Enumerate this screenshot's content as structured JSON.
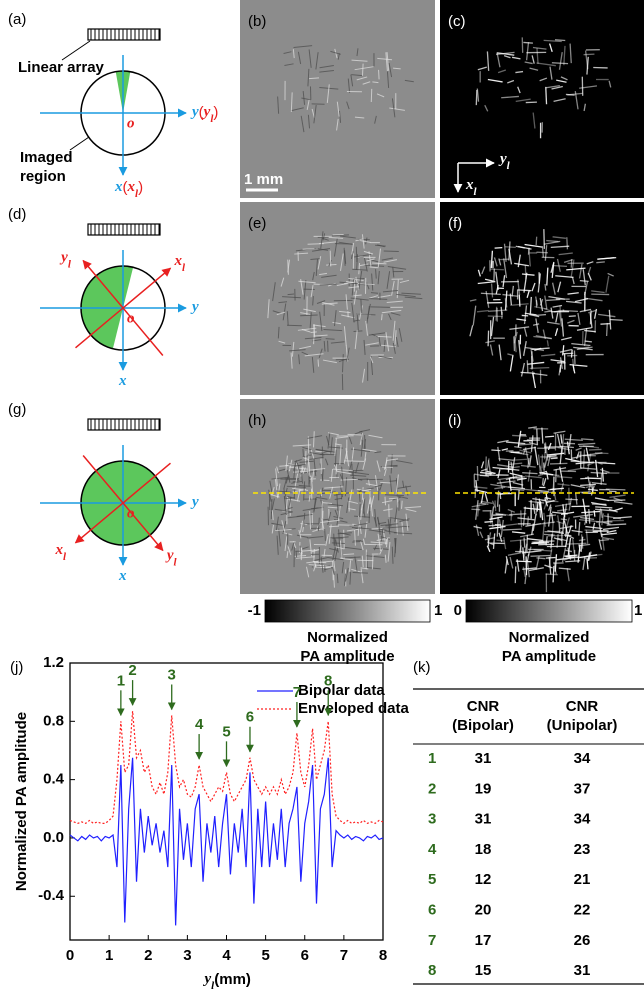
{
  "panel_labels": [
    "(a)",
    "(b)",
    "(c)",
    "(d)",
    "(e)",
    "(f)",
    "(g)",
    "(h)",
    "(i)",
    "(j)",
    "(k)"
  ],
  "diagram": {
    "array_label": "Linear array",
    "region_label": [
      "Imaged",
      "region"
    ],
    "origin": "o",
    "x": "x",
    "y": "y",
    "sub": "l",
    "open": "(",
    "close": ")"
  },
  "scale_bar": "1 mm",
  "colorbars": [
    {
      "ticks": [
        -1,
        1
      ]
    },
    {
      "ticks": [
        0,
        1
      ]
    }
  ],
  "colorbar_label": [
    "Normalized",
    "PA amplitude"
  ],
  "chart_data": {
    "type": "line",
    "y_label": "Normalized PA amplitude",
    "x_label": {
      "text": "y",
      "sub": "l",
      "unit": "(mm)"
    },
    "x": [
      0,
      0.1,
      0.2,
      0.3,
      0.4,
      0.5,
      0.6,
      0.7,
      0.8,
      0.9,
      1,
      1.1,
      1.2,
      1.3,
      1.4,
      1.5,
      1.6,
      1.7,
      1.8,
      1.9,
      2,
      2.1,
      2.2,
      2.3,
      2.4,
      2.5,
      2.6,
      2.7,
      2.8,
      2.9,
      3,
      3.1,
      3.2,
      3.3,
      3.4,
      3.5,
      3.6,
      3.7,
      3.8,
      3.9,
      4,
      4.1,
      4.2,
      4.3,
      4.4,
      4.5,
      4.6,
      4.7,
      4.8,
      4.9,
      5,
      5.1,
      5.2,
      5.3,
      5.4,
      5.5,
      5.6,
      5.7,
      5.8,
      5.9,
      6,
      6.1,
      6.2,
      6.3,
      6.4,
      6.5,
      6.6,
      6.7,
      6.8,
      6.9,
      7,
      7.1,
      7.2,
      7.3,
      7.4,
      7.5,
      7.6,
      7.7,
      7.8,
      7.9,
      8
    ],
    "series": [
      {
        "name": "Bipolar data",
        "color": "#2020ff",
        "dash": "solid",
        "values": [
          0.02,
          0,
          -0.02,
          0.01,
          -0.01,
          0.02,
          0,
          0.01,
          -0.02,
          0.01,
          0,
          0.02,
          -0.2,
          0.5,
          -0.58,
          0.2,
          0.55,
          -0.3,
          0.2,
          -0.1,
          0.15,
          -0.05,
          0.1,
          -0.1,
          0.05,
          -0.2,
          0.5,
          -0.6,
          0.2,
          -0.15,
          0.1,
          -0.2,
          0.2,
          0.3,
          -0.3,
          0.1,
          -0.1,
          0.15,
          -0.2,
          0.1,
          0.3,
          -0.25,
          0.1,
          -0.1,
          0.2,
          -0.2,
          0.45,
          -0.45,
          0.2,
          -0.2,
          0.25,
          -0.2,
          0.1,
          -0.15,
          0.2,
          -0.2,
          0.1,
          0.2,
          0.35,
          -0.3,
          0.1,
          0.25,
          0.5,
          -0.45,
          0.2,
          0.3,
          0.55,
          -0.2,
          0.05,
          0.02,
          0,
          0.02,
          -0.01,
          0.01,
          0,
          -0.02,
          0.01,
          0,
          0.02,
          -0.01,
          0
        ]
      },
      {
        "name": "Enveloped data",
        "color": "#ff2020",
        "dash": "dotted",
        "values": [
          0.12,
          0.11,
          0.1,
          0.11,
          0.1,
          0.12,
          0.1,
          0.11,
          0.1,
          0.1,
          0.12,
          0.15,
          0.4,
          0.8,
          0.45,
          0.5,
          0.87,
          0.55,
          0.6,
          0.45,
          0.5,
          0.35,
          0.3,
          0.38,
          0.3,
          0.45,
          0.84,
          0.5,
          0.35,
          0.4,
          0.3,
          0.28,
          0.35,
          0.5,
          0.35,
          0.3,
          0.25,
          0.3,
          0.35,
          0.32,
          0.45,
          0.3,
          0.25,
          0.3,
          0.35,
          0.4,
          0.55,
          0.4,
          0.35,
          0.3,
          0.35,
          0.3,
          0.35,
          0.3,
          0.4,
          0.3,
          0.35,
          0.45,
          0.72,
          0.45,
          0.35,
          0.5,
          0.75,
          0.4,
          0.5,
          0.6,
          0.8,
          0.3,
          0.15,
          0.12,
          0.1,
          0.12,
          0.1,
          0.11,
          0.1,
          0.12,
          0.1,
          0.11,
          0.1,
          0.12,
          0.11
        ]
      }
    ],
    "xlim": [
      0,
      8
    ],
    "xticks": [
      0,
      1,
      2,
      3,
      4,
      5,
      6,
      7,
      8
    ],
    "ylim": [
      -0.7,
      1.2
    ],
    "yticks": [
      -0.4,
      {
        "value": 0,
        "label": "0.0"
      },
      0.4,
      0.8,
      1.2
    ],
    "legend": "upper right",
    "annotation_color": "#2e6b1e",
    "annotations": [
      {
        "text": "1",
        "x": 1.3,
        "y": 0.8
      },
      {
        "text": "2",
        "x": 1.6,
        "y": 0.87
      },
      {
        "text": "3",
        "x": 2.6,
        "y": 0.84
      },
      {
        "text": "4",
        "x": 3.3,
        "y": 0.5
      },
      {
        "text": "5",
        "x": 4.0,
        "y": 0.45
      },
      {
        "text": "6",
        "x": 4.6,
        "y": 0.55
      },
      {
        "text": "7",
        "x": 5.8,
        "y": 0.72
      },
      {
        "text": "8",
        "x": 6.6,
        "y": 0.8
      }
    ]
  },
  "table": {
    "columns": [
      [
        "CNR",
        "(Bipolar)"
      ],
      [
        "CNR",
        "(Unipolar)"
      ]
    ],
    "rows": [
      [
        "1",
        31,
        34
      ],
      [
        "2",
        19,
        37
      ],
      [
        "3",
        31,
        34
      ],
      [
        "4",
        18,
        23
      ],
      [
        "5",
        12,
        21
      ],
      [
        "6",
        20,
        22
      ],
      [
        "7",
        17,
        26
      ],
      [
        "8",
        15,
        31
      ]
    ]
  }
}
